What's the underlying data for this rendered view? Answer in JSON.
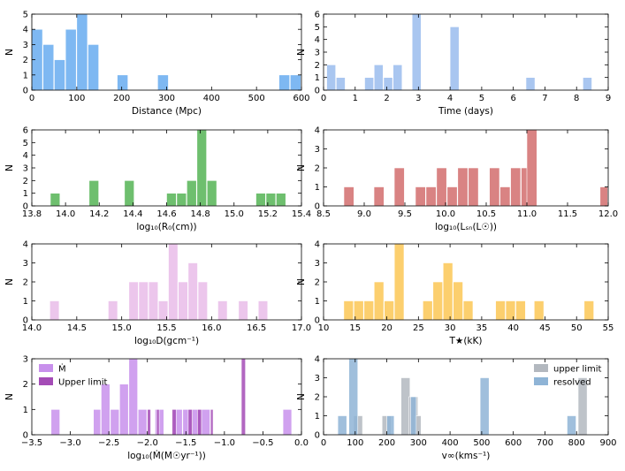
{
  "chart_data": [
    {
      "type": "bar",
      "xlabel": "Distance (Mpc)",
      "ylabel": "N",
      "xlim": [
        0,
        600
      ],
      "ylim": [
        0,
        5
      ],
      "xticks": [
        "0",
        "100",
        "200",
        "300",
        "400",
        "500",
        "600"
      ],
      "yticks": [
        "0",
        "1",
        "2",
        "3",
        "4",
        "5"
      ],
      "series": [
        {
          "name": "",
          "color": "#7eb8f2",
          "bins": [
            [
              0,
              25,
              4
            ],
            [
              25,
              50,
              3
            ],
            [
              50,
              75,
              2
            ],
            [
              75,
              100,
              4
            ],
            [
              100,
              125,
              5
            ],
            [
              125,
              150,
              3
            ],
            [
              190,
              215,
              1
            ],
            [
              280,
              305,
              1
            ],
            [
              550,
              575,
              1
            ],
            [
              575,
              600,
              1
            ]
          ]
        }
      ]
    },
    {
      "type": "bar",
      "xlabel": "Time (days)",
      "ylabel": "N",
      "xlim": [
        0,
        9
      ],
      "ylim": [
        0,
        6
      ],
      "xticks": [
        "0",
        "1",
        "2",
        "3",
        "4",
        "5",
        "6",
        "7",
        "8",
        "9"
      ],
      "yticks": [
        "0",
        "1",
        "2",
        "3",
        "4",
        "5",
        "6"
      ],
      "series": [
        {
          "name": "",
          "color": "#a9c6f0",
          "bins": [
            [
              0.1,
              0.4,
              2
            ],
            [
              0.4,
              0.7,
              1
            ],
            [
              1.3,
              1.6,
              1
            ],
            [
              1.6,
              1.9,
              2
            ],
            [
              1.9,
              2.2,
              1
            ],
            [
              2.2,
              2.5,
              2
            ],
            [
              2.8,
              3.1,
              6
            ],
            [
              4.0,
              4.3,
              5
            ],
            [
              6.4,
              6.7,
              1
            ],
            [
              8.2,
              8.5,
              1
            ]
          ]
        }
      ]
    },
    {
      "type": "bar",
      "xlabel": "log₁₀(R₀(cm))",
      "ylabel": "N",
      "xlim": [
        13.8,
        15.4
      ],
      "ylim": [
        0,
        6
      ],
      "xticks": [
        "13.8",
        "14.0",
        "14.2",
        "14.4",
        "14.6",
        "14.8",
        "15.0",
        "15.2",
        "15.4"
      ],
      "yticks": [
        "0",
        "1",
        "2",
        "3",
        "4",
        "5",
        "6"
      ],
      "series": [
        {
          "name": "",
          "color": "#6ebf6e",
          "bins": [
            [
              13.91,
              13.97,
              1
            ],
            [
              14.14,
              14.2,
              2
            ],
            [
              14.35,
              14.41,
              2
            ],
            [
              14.6,
              14.66,
              1
            ],
            [
              14.66,
              14.72,
              1
            ],
            [
              14.72,
              14.78,
              2
            ],
            [
              14.78,
              14.84,
              6
            ],
            [
              14.84,
              14.9,
              2
            ],
            [
              15.13,
              15.19,
              1
            ],
            [
              15.19,
              15.25,
              1
            ],
            [
              15.25,
              15.31,
              1
            ]
          ]
        }
      ]
    },
    {
      "type": "bar",
      "xlabel": "log₁₀(Lₛₙ(L☉))",
      "ylabel": "N",
      "xlim": [
        8.5,
        12.0
      ],
      "ylim": [
        0,
        4
      ],
      "xticks": [
        "8.5",
        "9.0",
        "9.5",
        "10.0",
        "10.5",
        "11.0",
        "11.5",
        "12.0"
      ],
      "yticks": [
        "0",
        "1",
        "2",
        "3",
        "4"
      ],
      "series": [
        {
          "name": "",
          "color": "#d98383",
          "bins": [
            [
              8.75,
              8.88,
              1
            ],
            [
              9.12,
              9.25,
              1
            ],
            [
              9.37,
              9.5,
              2
            ],
            [
              9.63,
              9.76,
              1
            ],
            [
              9.76,
              9.89,
              1
            ],
            [
              9.89,
              10.02,
              2
            ],
            [
              10.02,
              10.15,
              1
            ],
            [
              10.15,
              10.28,
              2
            ],
            [
              10.28,
              10.41,
              2
            ],
            [
              10.54,
              10.67,
              2
            ],
            [
              10.67,
              10.8,
              1
            ],
            [
              10.8,
              10.93,
              2
            ],
            [
              10.93,
              11.06,
              2
            ],
            [
              11.0,
              11.13,
              4
            ],
            [
              11.9,
              12.0,
              1
            ]
          ]
        }
      ]
    },
    {
      "type": "bar",
      "xlabel": "log₁₀D(gcm⁻¹)",
      "ylabel": "N",
      "xlim": [
        14.0,
        17.0
      ],
      "ylim": [
        0,
        4
      ],
      "xticks": [
        "14.0",
        "14.5",
        "15.0",
        "15.5",
        "16.0",
        "16.5",
        "17.0"
      ],
      "yticks": [
        "0",
        "1",
        "2",
        "3",
        "4"
      ],
      "series": [
        {
          "name": "",
          "color": "#ecc6ec",
          "bins": [
            [
              14.2,
              14.31,
              1
            ],
            [
              14.85,
              14.96,
              1
            ],
            [
              15.08,
              15.19,
              2
            ],
            [
              15.19,
              15.3,
              2
            ],
            [
              15.3,
              15.41,
              2
            ],
            [
              15.41,
              15.52,
              1
            ],
            [
              15.52,
              15.63,
              4
            ],
            [
              15.63,
              15.74,
              2
            ],
            [
              15.74,
              15.85,
              3
            ],
            [
              15.85,
              15.96,
              2
            ],
            [
              16.07,
              16.18,
              1
            ],
            [
              16.3,
              16.41,
              1
            ],
            [
              16.52,
              16.63,
              1
            ]
          ]
        }
      ]
    },
    {
      "type": "bar",
      "xlabel": "T★(kK)",
      "ylabel": "N",
      "xlim": [
        10,
        55
      ],
      "ylim": [
        0,
        4
      ],
      "xticks": [
        "10",
        "15",
        "20",
        "25",
        "30",
        "35",
        "40",
        "45",
        "50",
        "55"
      ],
      "yticks": [
        "0",
        "1",
        "2",
        "3",
        "4"
      ],
      "series": [
        {
          "name": "",
          "color": "#fccf6e",
          "bins": [
            [
              13.2,
              14.8,
              1
            ],
            [
              14.8,
              16.4,
              1
            ],
            [
              16.4,
              18.0,
              1
            ],
            [
              18.0,
              19.6,
              2
            ],
            [
              19.6,
              21.2,
              1
            ],
            [
              21.2,
              22.8,
              4
            ],
            [
              25.7,
              27.3,
              1
            ],
            [
              27.3,
              28.9,
              2
            ],
            [
              28.9,
              30.5,
              3
            ],
            [
              30.5,
              32.1,
              2
            ],
            [
              32.1,
              33.7,
              1
            ],
            [
              37.2,
              38.8,
              1
            ],
            [
              38.8,
              40.4,
              1
            ],
            [
              40.4,
              42.0,
              1
            ],
            [
              43.3,
              44.9,
              1
            ],
            [
              51.2,
              52.8,
              1
            ]
          ]
        }
      ]
    },
    {
      "type": "bar",
      "xlabel": "log₁₀(Ṁ(M☉yr⁻¹))",
      "ylabel": "N",
      "xlim": [
        -3.5,
        0.0
      ],
      "ylim": [
        0,
        3
      ],
      "xticks": [
        "−3.5",
        "−3.0",
        "−2.5",
        "−2.0",
        "−1.5",
        "−1.0",
        "−0.5",
        "0.0"
      ],
      "yticks": [
        "0",
        "1",
        "2",
        "3"
      ],
      "legend": [
        "Ṁ",
        "Upper limit"
      ],
      "series": [
        {
          "name": "Ṁ",
          "color": "#c890ec",
          "bins": [
            [
              -3.25,
              -3.13,
              1
            ],
            [
              -2.7,
              -2.6,
              1
            ],
            [
              -2.6,
              -2.48,
              2
            ],
            [
              -2.48,
              -2.36,
              1
            ],
            [
              -2.36,
              -2.24,
              2
            ],
            [
              -2.24,
              -2.12,
              3
            ],
            [
              -2.12,
              -2.0,
              1
            ],
            [
              -1.9,
              -1.78,
              1
            ],
            [
              -1.66,
              -1.54,
              1
            ],
            [
              -1.54,
              -1.42,
              1
            ],
            [
              -1.42,
              -1.3,
              1
            ],
            [
              -1.3,
              -1.18,
              1
            ],
            [
              -0.24,
              -0.12,
              1
            ]
          ]
        },
        {
          "name": "Upper limit",
          "color": "#a44cb6",
          "bins": [
            [
              -2.0,
              -1.95,
              1
            ],
            [
              -1.88,
              -1.84,
              1
            ],
            [
              -1.68,
              -1.62,
              1
            ],
            [
              -1.47,
              -1.41,
              1
            ],
            [
              -1.35,
              -1.29,
              1
            ],
            [
              -1.18,
              -1.14,
              1
            ],
            [
              -0.78,
              -0.72,
              3
            ]
          ]
        }
      ]
    },
    {
      "type": "bar",
      "xlabel": "v∞(kms⁻¹)",
      "ylabel": "N",
      "xlim": [
        0,
        900
      ],
      "ylim": [
        0,
        4
      ],
      "xticks": [
        "0",
        "100",
        "200",
        "300",
        "400",
        "500",
        "600",
        "700",
        "800",
        "900"
      ],
      "yticks": [
        "0",
        "1",
        "2",
        "3",
        "4"
      ],
      "legend": [
        "upper limit",
        "resolved"
      ],
      "series": [
        {
          "name": "upper limit",
          "color": "#b3b8bf",
          "bins": [
            [
              95,
              125,
              1
            ],
            [
              185,
              215,
              1
            ],
            [
              245,
              275,
              3
            ],
            [
              270,
              300,
              2
            ],
            [
              290,
              310,
              1
            ],
            [
              805,
              835,
              3
            ]
          ]
        },
        {
          "name": "resolved",
          "color": "#8fb4d6",
          "bins": [
            [
              45,
              75,
              1
            ],
            [
              80,
              110,
              4
            ],
            [
              200,
              225,
              1
            ],
            [
              275,
              295,
              2
            ],
            [
              495,
              525,
              3
            ],
            [
              770,
              800,
              1
            ]
          ]
        }
      ]
    }
  ]
}
